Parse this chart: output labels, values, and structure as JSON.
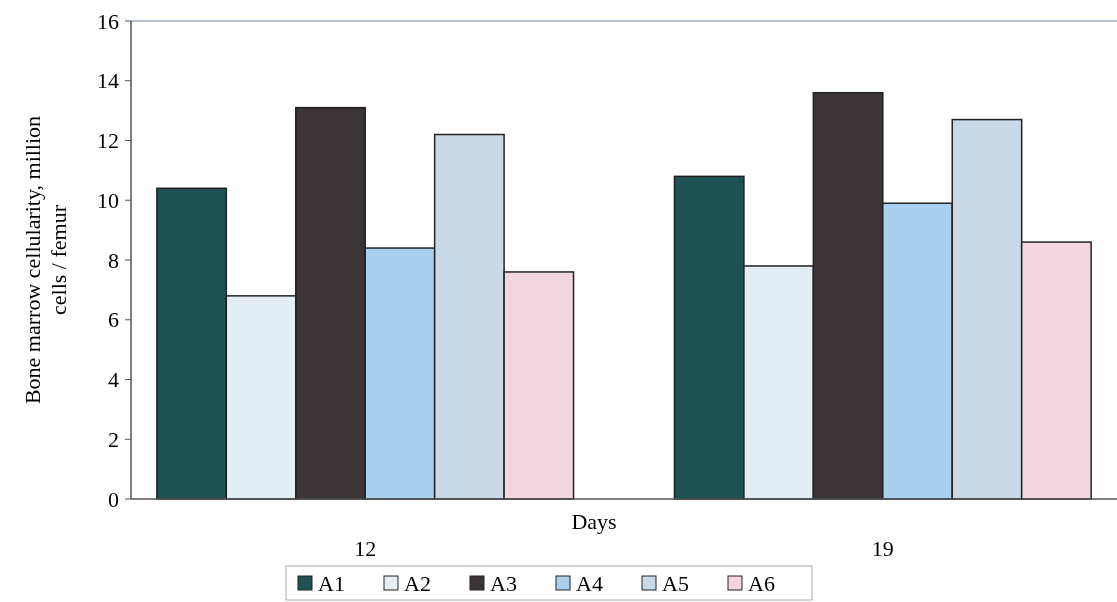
{
  "chart_data": {
    "type": "bar",
    "xlabel": "Days",
    "ylabel": "Bone marrow cellularity, million cells / femur",
    "categories": [
      "12",
      "19"
    ],
    "series": [
      {
        "name": "A1",
        "color": "#1f5252",
        "values": [
          10.4,
          10.8
        ]
      },
      {
        "name": "A2",
        "color": "#e4edf4",
        "values": [
          6.8,
          7.8
        ]
      },
      {
        "name": "A3",
        "color": "#3b3537",
        "values": [
          13.1,
          13.6
        ]
      },
      {
        "name": "A4",
        "color": "#a9d1ef",
        "values": [
          8.4,
          9.9
        ]
      },
      {
        "name": "A5",
        "color": "#c9dae6",
        "values": [
          12.2,
          12.7
        ]
      },
      {
        "name": "A6",
        "color": "#f3d5df",
        "values": [
          7.6,
          8.6
        ]
      }
    ],
    "ylim": [
      0,
      16
    ],
    "yticks": [
      0,
      2,
      4,
      6,
      8,
      10,
      12,
      14,
      16
    ],
    "legend": "bottom",
    "grid": false
  }
}
